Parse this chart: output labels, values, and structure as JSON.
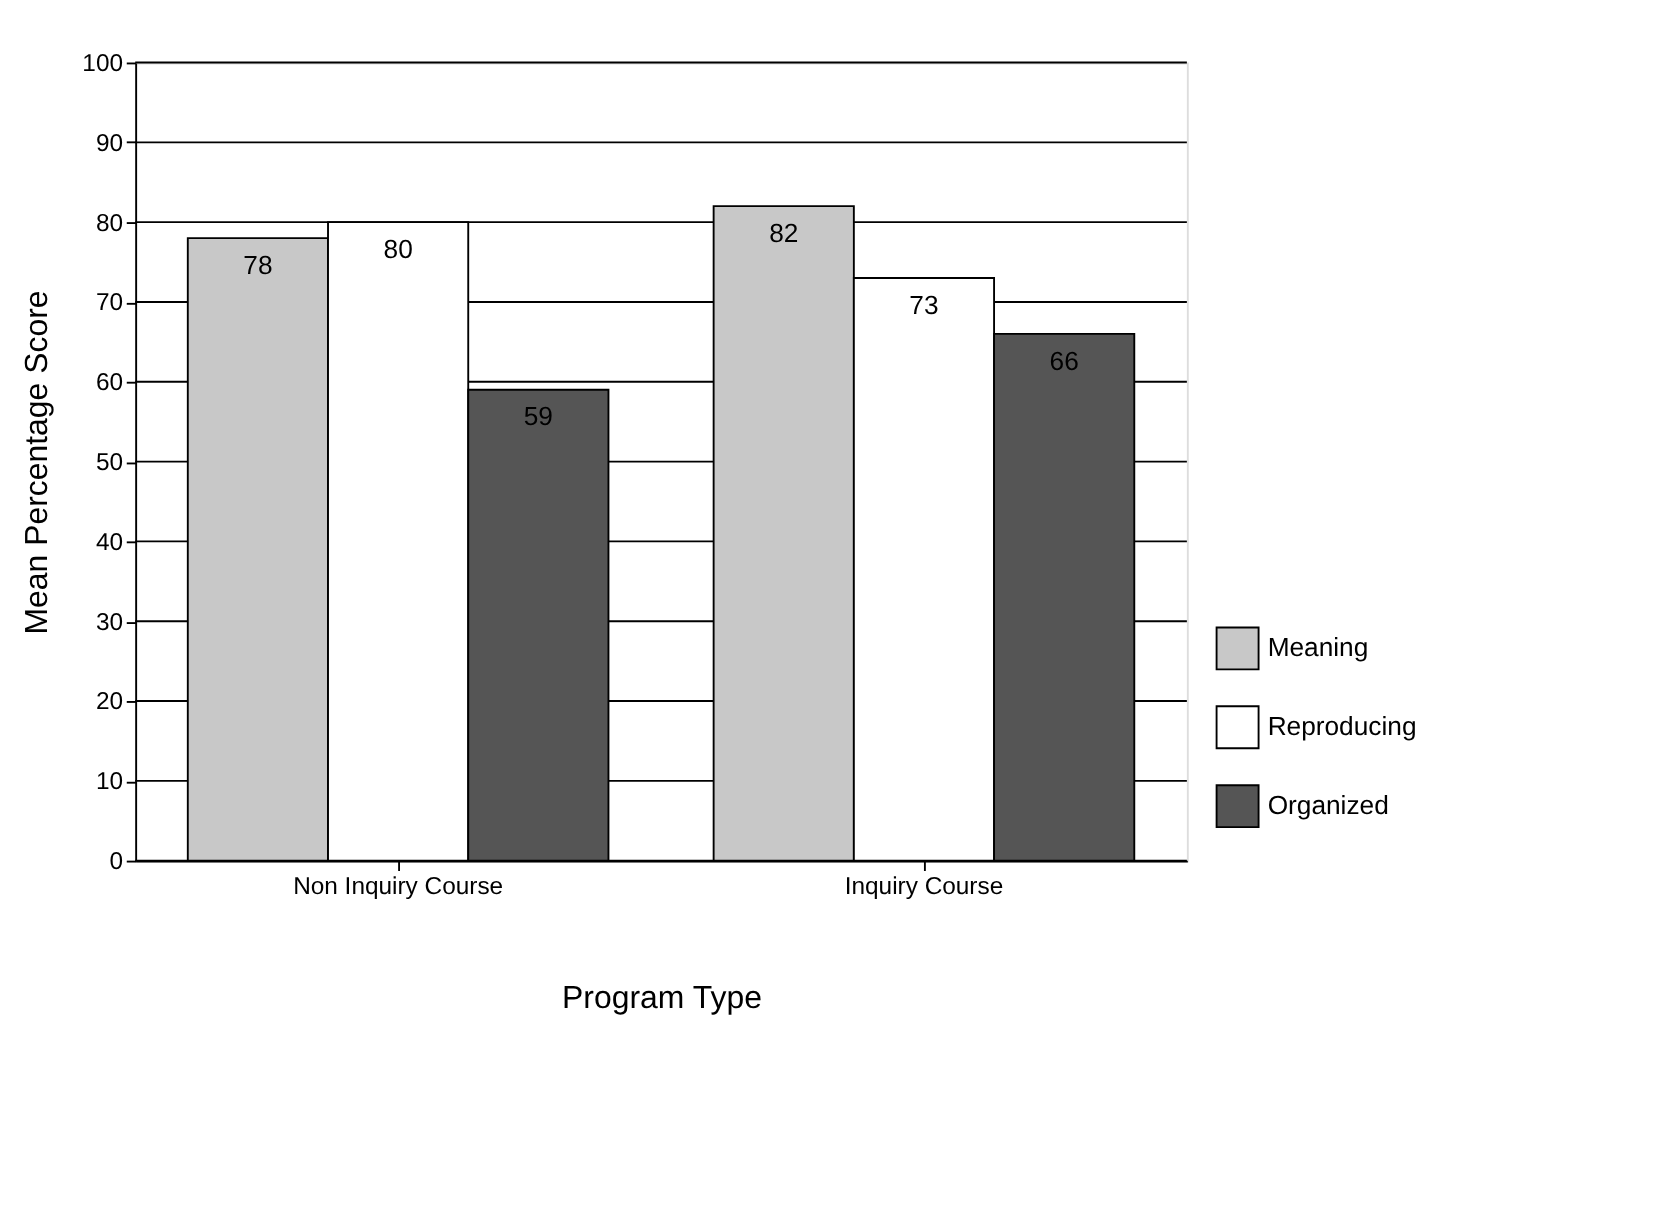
{
  "chart_data": {
    "type": "bar",
    "xlabel": "Program Type",
    "ylabel": "Mean Percentage Score",
    "categories": [
      "Non Inquiry Course",
      "Inquiry Course"
    ],
    "series": [
      {
        "name": "Meaning",
        "color": "#c8c8c8",
        "values": [
          78,
          82
        ]
      },
      {
        "name": "Reproducing",
        "color": "#ffffff",
        "values": [
          80,
          73
        ]
      },
      {
        "name": "Organized",
        "color": "#555555",
        "values": [
          59,
          66
        ]
      }
    ],
    "ylim": [
      0,
      100
    ],
    "yticks": [
      0,
      10,
      20,
      30,
      40,
      50,
      60,
      70,
      80,
      90,
      100
    ],
    "grid": "y",
    "legend": "bottom right",
    "data_labels": true
  }
}
